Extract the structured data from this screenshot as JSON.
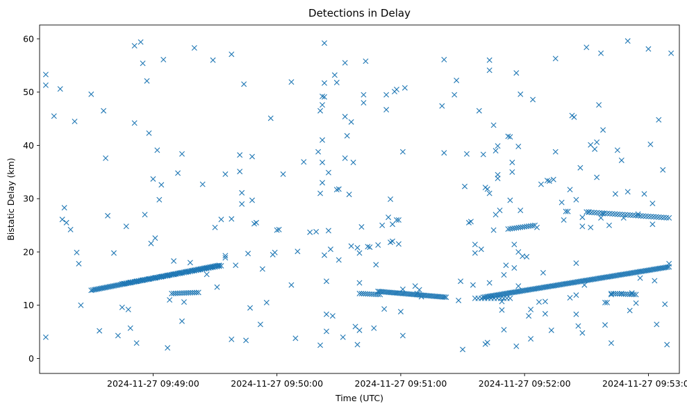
{
  "chart_data": {
    "type": "scatter",
    "title": "Detections in Delay",
    "xlabel": "Time (UTC)",
    "ylabel": "Bistatic Delay (km)",
    "marker": "x",
    "color": "#1f77b4",
    "xlim": [
      -55,
      255
    ],
    "ylim": [
      -2.8,
      62.6
    ],
    "yticks": [
      0,
      10,
      20,
      30,
      40,
      50,
      60
    ],
    "xticks": [
      {
        "t": 0,
        "label": "2024-11-27 09:49:00"
      },
      {
        "t": 60,
        "label": "2024-11-27 09:50:00"
      },
      {
        "t": 120,
        "label": "2024-11-27 09:51:00"
      },
      {
        "t": 180,
        "label": "2024-11-27 09:52:00"
      },
      {
        "t": 240,
        "label": "2024-11-27 09:53:00"
      }
    ],
    "x_units": "seconds after 2024-11-27 09:49:00 UTC",
    "tracks": [
      {
        "name": "track-a-rising",
        "t_start": -30,
        "t_end": 32,
        "d_start": 12.8,
        "d_end": 17.5,
        "step": 0.75
      },
      {
        "name": "track-a-upper",
        "t_start": -15,
        "t_end": 33,
        "d_start": 14.0,
        "d_end": 17.4,
        "step": 1.0
      },
      {
        "name": "track-a-lower",
        "t_start": 9,
        "t_end": 22,
        "d_start": 12.2,
        "d_end": 12.4,
        "step": 1.0
      },
      {
        "name": "track-b-falling",
        "t_start": 109,
        "t_end": 142,
        "d_start": 12.6,
        "d_end": 11.5,
        "step": 0.75
      },
      {
        "name": "track-b-lower",
        "t_start": 100,
        "t_end": 110,
        "d_start": 12.2,
        "d_end": 12.0,
        "step": 1.0
      },
      {
        "name": "track-b-flat",
        "t_start": 156,
        "t_end": 173,
        "d_start": 11.3,
        "d_end": 11.3,
        "step": 1.5
      },
      {
        "name": "track-c-rising",
        "t_start": 160,
        "t_end": 250,
        "d_start": 11.5,
        "d_end": 17.2,
        "step": 0.75
      },
      {
        "name": "track-c-lower",
        "t_start": 222,
        "t_end": 234,
        "d_start": 12.2,
        "d_end": 12.0,
        "step": 1.0
      },
      {
        "name": "track-d-high",
        "t_start": 172,
        "t_end": 185,
        "d_start": 24.3,
        "d_end": 25.0,
        "step": 1.0
      },
      {
        "name": "track-d-high-late",
        "t_start": 210,
        "t_end": 250,
        "d_start": 27.5,
        "d_end": 26.4,
        "step": 1.25
      }
    ],
    "points": [
      [
        -52,
        53.3
      ],
      [
        -52,
        51.3
      ],
      [
        -52,
        4.0
      ],
      [
        -48,
        45.5
      ],
      [
        -45,
        50.6
      ],
      [
        -44,
        26.1
      ],
      [
        -43,
        28.3
      ],
      [
        -42,
        25.5
      ],
      [
        -40,
        24.2
      ],
      [
        -38,
        44.5
      ],
      [
        -37,
        19.9
      ],
      [
        -36,
        17.8
      ],
      [
        -35,
        10.0
      ],
      [
        -30,
        49.6
      ],
      [
        -26,
        5.2
      ],
      [
        -24,
        46.5
      ],
      [
        -23,
        37.6
      ],
      [
        -22,
        26.8
      ],
      [
        -19,
        19.8
      ],
      [
        -17,
        4.3
      ],
      [
        -15,
        9.6
      ],
      [
        -13,
        24.8
      ],
      [
        -12,
        9.2
      ],
      [
        -11,
        5.7
      ],
      [
        -9,
        58.7
      ],
      [
        -9,
        44.2
      ],
      [
        -8,
        2.9
      ],
      [
        -6,
        59.4
      ],
      [
        -5,
        55.4
      ],
      [
        -4,
        27.0
      ],
      [
        -3,
        52.1
      ],
      [
        -2,
        42.3
      ],
      [
        -1,
        21.6
      ],
      [
        0,
        33.7
      ],
      [
        1,
        22.6
      ],
      [
        2,
        39.1
      ],
      [
        3,
        29.8
      ],
      [
        4,
        32.6
      ],
      [
        5,
        56.1
      ],
      [
        7,
        2.0
      ],
      [
        8,
        11.0
      ],
      [
        10,
        18.3
      ],
      [
        12,
        34.8
      ],
      [
        14,
        38.4
      ],
      [
        14,
        7.0
      ],
      [
        15,
        10.6
      ],
      [
        18,
        18.0
      ],
      [
        20,
        58.3
      ],
      [
        24,
        32.7
      ],
      [
        26,
        15.8
      ],
      [
        29,
        56.0
      ],
      [
        30,
        24.6
      ],
      [
        31,
        13.4
      ],
      [
        32,
        17.4
      ],
      [
        33,
        26.1
      ],
      [
        35,
        19.3
      ],
      [
        35,
        18.9
      ],
      [
        35,
        34.6
      ],
      [
        38,
        3.6
      ],
      [
        38,
        26.2
      ],
      [
        38,
        57.1
      ],
      [
        40,
        17.5
      ],
      [
        42,
        35.1
      ],
      [
        42,
        38.2
      ],
      [
        43,
        29.0
      ],
      [
        43,
        31.1
      ],
      [
        44,
        51.5
      ],
      [
        45,
        3.4
      ],
      [
        46,
        19.7
      ],
      [
        47,
        9.5
      ],
      [
        48,
        37.9
      ],
      [
        48,
        29.7
      ],
      [
        49,
        25.3
      ],
      [
        50,
        25.5
      ],
      [
        52,
        6.4
      ],
      [
        53,
        16.8
      ],
      [
        55,
        10.5
      ],
      [
        57,
        45.1
      ],
      [
        58,
        19.5
      ],
      [
        59,
        19.9
      ],
      [
        60,
        24.1
      ],
      [
        61,
        24.2
      ],
      [
        63,
        34.6
      ],
      [
        67,
        51.9
      ],
      [
        67,
        13.8
      ],
      [
        69,
        3.8
      ],
      [
        70,
        20.1
      ],
      [
        73,
        36.9
      ],
      [
        76,
        23.7
      ],
      [
        79,
        23.8
      ],
      [
        80,
        38.8
      ],
      [
        81,
        31.0
      ],
      [
        81,
        46.5
      ],
      [
        81,
        2.5
      ],
      [
        82,
        47.6
      ],
      [
        82,
        49.2
      ],
      [
        82,
        41.0
      ],
      [
        82,
        36.8
      ],
      [
        82,
        33.0
      ],
      [
        83,
        59.2
      ],
      [
        83,
        51.7
      ],
      [
        83,
        49.1
      ],
      [
        83,
        19.4
      ],
      [
        84,
        14.5
      ],
      [
        84,
        8.3
      ],
      [
        84,
        5.1
      ],
      [
        85,
        34.9
      ],
      [
        85,
        24.0
      ],
      [
        86,
        20.5
      ],
      [
        87,
        8.0
      ],
      [
        88,
        53.2
      ],
      [
        89,
        31.7
      ],
      [
        89,
        51.8
      ],
      [
        90,
        31.8
      ],
      [
        90,
        18.5
      ],
      [
        92,
        4.0
      ],
      [
        93,
        55.5
      ],
      [
        93,
        45.4
      ],
      [
        93,
        37.6
      ],
      [
        94,
        41.8
      ],
      [
        95,
        30.8
      ],
      [
        96,
        44.4
      ],
      [
        96,
        21.1
      ],
      [
        97,
        36.8
      ],
      [
        98,
        6.0
      ],
      [
        99,
        2.6
      ],
      [
        99,
        20.8
      ],
      [
        100,
        14.2
      ],
      [
        100,
        19.8
      ],
      [
        100,
        5.3
      ],
      [
        101,
        24.7
      ],
      [
        102,
        49.5
      ],
      [
        102,
        48.0
      ],
      [
        103,
        55.8
      ],
      [
        104,
        21.0
      ],
      [
        105,
        20.9
      ],
      [
        107,
        5.7
      ],
      [
        108,
        17.6
      ],
      [
        109,
        21.3
      ],
      [
        111,
        25.0
      ],
      [
        112,
        9.3
      ],
      [
        113,
        49.5
      ],
      [
        113,
        46.7
      ],
      [
        114,
        26.5
      ],
      [
        115,
        29.9
      ],
      [
        115,
        21.8
      ],
      [
        116,
        25.2
      ],
      [
        116,
        22.0
      ],
      [
        117,
        50.1
      ],
      [
        118,
        50.5
      ],
      [
        118,
        26.0
      ],
      [
        119,
        26.0
      ],
      [
        119,
        21.5
      ],
      [
        120,
        8.8
      ],
      [
        121,
        13.0
      ],
      [
        121,
        38.8
      ],
      [
        121,
        4.3
      ],
      [
        122,
        50.8
      ],
      [
        127,
        13.6
      ],
      [
        128,
        12.2
      ],
      [
        129,
        12.9
      ],
      [
        130,
        11.6
      ],
      [
        140,
        47.4
      ],
      [
        141,
        56.1
      ],
      [
        141,
        38.6
      ],
      [
        146,
        49.5
      ],
      [
        147,
        52.2
      ],
      [
        148,
        10.9
      ],
      [
        149,
        14.5
      ],
      [
        150,
        1.7
      ],
      [
        151,
        32.3
      ],
      [
        152,
        38.4
      ],
      [
        153,
        25.5
      ],
      [
        154,
        25.7
      ],
      [
        155,
        13.8
      ],
      [
        156,
        19.8
      ],
      [
        156,
        21.4
      ],
      [
        158,
        46.5
      ],
      [
        159,
        20.5
      ],
      [
        160,
        38.3
      ],
      [
        161,
        2.7
      ],
      [
        161,
        32.1
      ],
      [
        162,
        3.0
      ],
      [
        162,
        31.8
      ],
      [
        163,
        31.0
      ],
      [
        163,
        54.1
      ],
      [
        163,
        56.0
      ],
      [
        163,
        14.2
      ],
      [
        165,
        24.1
      ],
      [
        165,
        43.8
      ],
      [
        166,
        27.0
      ],
      [
        166,
        39.0
      ],
      [
        167,
        39.9
      ],
      [
        167,
        33.8
      ],
      [
        167,
        34.5
      ],
      [
        168,
        27.8
      ],
      [
        169,
        9.1
      ],
      [
        169,
        10.7
      ],
      [
        170,
        5.4
      ],
      [
        170,
        15.7
      ],
      [
        171,
        17.5
      ],
      [
        172,
        41.7
      ],
      [
        173,
        41.6
      ],
      [
        173,
        29.7
      ],
      [
        174,
        36.8
      ],
      [
        174,
        35.0
      ],
      [
        175,
        21.4
      ],
      [
        175,
        17.0
      ],
      [
        176,
        53.6
      ],
      [
        176,
        2.3
      ],
      [
        177,
        20.0
      ],
      [
        177,
        13.6
      ],
      [
        177,
        39.8
      ],
      [
        178,
        49.6
      ],
      [
        178,
        27.8
      ],
      [
        179,
        19.2
      ],
      [
        181,
        19.1
      ],
      [
        182,
        8.0
      ],
      [
        183,
        9.2
      ],
      [
        183,
        3.7
      ],
      [
        184,
        48.6
      ],
      [
        186,
        24.6
      ],
      [
        187,
        10.6
      ],
      [
        188,
        32.7
      ],
      [
        189,
        16.1
      ],
      [
        190,
        10.7
      ],
      [
        190,
        8.4
      ],
      [
        191,
        33.4
      ],
      [
        192,
        33.3
      ],
      [
        193,
        5.3
      ],
      [
        194,
        33.6
      ],
      [
        195,
        56.3
      ],
      [
        195,
        38.8
      ],
      [
        198,
        29.3
      ],
      [
        199,
        26.0
      ],
      [
        200,
        27.6
      ],
      [
        201,
        27.6
      ],
      [
        202,
        31.7
      ],
      [
        202,
        11.4
      ],
      [
        203,
        45.6
      ],
      [
        204,
        45.3
      ],
      [
        205,
        17.9
      ],
      [
        205,
        29.8
      ],
      [
        205,
        11.9
      ],
      [
        205,
        8.3
      ],
      [
        206,
        6.1
      ],
      [
        207,
        35.8
      ],
      [
        208,
        24.8
      ],
      [
        208,
        26.5
      ],
      [
        208,
        4.8
      ],
      [
        209,
        13.8
      ],
      [
        210,
        58.4
      ],
      [
        211,
        27.5
      ],
      [
        212,
        40.1
      ],
      [
        212,
        24.6
      ],
      [
        214,
        39.3
      ],
      [
        215,
        40.6
      ],
      [
        215,
        34.0
      ],
      [
        216,
        47.6
      ],
      [
        217,
        57.3
      ],
      [
        217,
        26.4
      ],
      [
        218,
        42.9
      ],
      [
        218,
        27.2
      ],
      [
        219,
        10.5
      ],
      [
        219,
        6.3
      ],
      [
        220,
        10.5
      ],
      [
        221,
        25.0
      ],
      [
        222,
        2.9
      ],
      [
        222,
        12.0
      ],
      [
        224,
        30.9
      ],
      [
        225,
        39.1
      ],
      [
        227,
        37.2
      ],
      [
        227,
        12.2
      ],
      [
        228,
        26.4
      ],
      [
        230,
        59.6
      ],
      [
        230,
        31.3
      ],
      [
        231,
        9.0
      ],
      [
        232,
        12.3
      ],
      [
        234,
        10.4
      ],
      [
        235,
        27.1
      ],
      [
        236,
        15.1
      ],
      [
        238,
        30.9
      ],
      [
        240,
        58.1
      ],
      [
        241,
        40.2
      ],
      [
        242,
        25.2
      ],
      [
        242,
        29.1
      ],
      [
        243,
        14.6
      ],
      [
        244,
        6.4
      ],
      [
        245,
        44.8
      ],
      [
        247,
        35.4
      ],
      [
        248,
        10.2
      ],
      [
        249,
        2.6
      ],
      [
        250,
        17.8
      ],
      [
        251,
        57.3
      ]
    ]
  }
}
